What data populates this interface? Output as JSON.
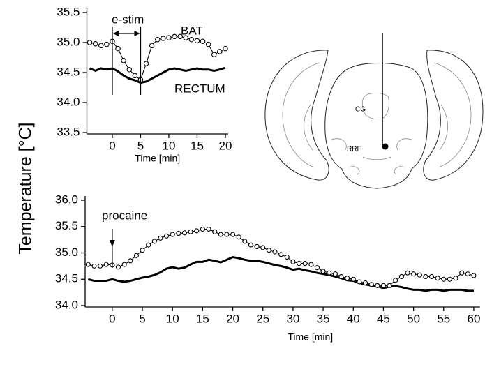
{
  "ylabel": "Temperature  [°C]",
  "diagram": {
    "labels": [
      "CG",
      "RRF"
    ]
  },
  "chart_data": [
    {
      "type": "line",
      "xlabel": "Time  [min]",
      "x": [
        -4,
        -3,
        -2,
        -1,
        0,
        1,
        2,
        3,
        4,
        5,
        6,
        7,
        8,
        9,
        10,
        11,
        12,
        13,
        14,
        15,
        16,
        17,
        18,
        19,
        20
      ],
      "series": [
        {
          "name": "BAT",
          "color": "#000000",
          "marker": "circle",
          "values": [
            35.0,
            34.98,
            34.95,
            34.97,
            35.02,
            34.9,
            34.7,
            34.55,
            34.45,
            34.38,
            34.65,
            34.95,
            35.05,
            35.07,
            35.08,
            35.1,
            35.1,
            35.08,
            35.05,
            35.03,
            35.02,
            34.97,
            34.8,
            34.85,
            34.9
          ]
        },
        {
          "name": "RECTUM",
          "color": "#000000",
          "marker": "none",
          "values": [
            34.57,
            34.53,
            34.57,
            34.55,
            34.57,
            34.52,
            34.45,
            34.4,
            34.37,
            34.33,
            34.35,
            34.4,
            34.45,
            34.5,
            34.55,
            34.57,
            34.55,
            34.53,
            34.55,
            34.57,
            34.55,
            34.55,
            34.53,
            34.55,
            34.58
          ]
        }
      ],
      "estim": {
        "label": "e-stim",
        "start": 0,
        "end": 5
      },
      "xlim": [
        -4.5,
        20.5
      ],
      "xticks": [
        0,
        5,
        10,
        15,
        20
      ],
      "ylim": [
        33.5,
        35.5
      ],
      "yticks": [
        33.5,
        {
          "value": 34,
          "label": "34.0"
        },
        34.5,
        {
          "value": 35,
          "label": "35.0"
        },
        35.5
      ]
    },
    {
      "type": "line",
      "xlabel": "Time  [min]",
      "x": [
        -4,
        -3,
        -2,
        -1,
        0,
        1,
        2,
        3,
        4,
        5,
        6,
        7,
        8,
        9,
        10,
        11,
        12,
        13,
        14,
        15,
        16,
        17,
        18,
        19,
        20,
        21,
        22,
        23,
        24,
        25,
        26,
        27,
        28,
        29,
        30,
        31,
        32,
        33,
        34,
        35,
        36,
        37,
        38,
        39,
        40,
        41,
        42,
        43,
        44,
        45,
        46,
        47,
        48,
        49,
        50,
        51,
        52,
        53,
        54,
        55,
        56,
        57,
        58,
        59,
        60
      ],
      "series": [
        {
          "name": "BAT",
          "color": "#000000",
          "marker": "circle",
          "values": [
            34.78,
            34.75,
            34.75,
            34.78,
            34.77,
            34.73,
            34.78,
            34.85,
            34.95,
            35.05,
            35.15,
            35.22,
            35.28,
            35.32,
            35.35,
            35.37,
            35.38,
            35.4,
            35.42,
            35.45,
            35.45,
            35.4,
            35.35,
            35.35,
            35.35,
            35.3,
            35.22,
            35.15,
            35.12,
            35.1,
            35.05,
            35.02,
            34.97,
            34.92,
            34.83,
            34.8,
            34.8,
            34.78,
            34.72,
            34.65,
            34.62,
            34.6,
            34.55,
            34.52,
            34.5,
            34.45,
            34.43,
            34.4,
            34.38,
            34.38,
            34.38,
            34.48,
            34.55,
            34.62,
            34.6,
            34.58,
            34.55,
            34.55,
            34.52,
            34.5,
            34.5,
            34.52,
            34.62,
            34.6,
            34.57
          ]
        },
        {
          "name": "RECTUM",
          "color": "#000000",
          "marker": "none",
          "values": [
            34.5,
            34.47,
            34.47,
            34.47,
            34.5,
            34.47,
            34.45,
            34.47,
            34.5,
            34.53,
            34.55,
            34.58,
            34.63,
            34.7,
            34.73,
            34.7,
            34.72,
            34.78,
            34.83,
            34.83,
            34.87,
            34.85,
            34.82,
            34.87,
            34.92,
            34.9,
            34.87,
            34.85,
            34.85,
            34.83,
            34.8,
            34.77,
            34.75,
            34.72,
            34.68,
            34.7,
            34.67,
            34.65,
            34.62,
            34.6,
            34.58,
            34.55,
            34.52,
            34.48,
            34.47,
            34.43,
            34.4,
            34.38,
            34.37,
            34.33,
            34.36,
            34.37,
            34.35,
            34.32,
            34.3,
            34.3,
            34.28,
            34.3,
            34.3,
            34.28,
            34.3,
            34.3,
            34.3,
            34.28,
            34.28
          ]
        }
      ],
      "procaine": {
        "label": "procaine",
        "at": 0
      },
      "xlim": [
        -4.5,
        61
      ],
      "xticks": [
        0,
        5,
        10,
        15,
        20,
        25,
        30,
        35,
        40,
        45,
        50,
        55,
        60
      ],
      "ylim": [
        34,
        36
      ],
      "yticks": [
        {
          "value": 34,
          "label": "34.0"
        },
        34.5,
        {
          "value": 35,
          "label": "35.0"
        },
        35.5,
        {
          "value": 36,
          "label": "36.0"
        }
      ]
    }
  ]
}
